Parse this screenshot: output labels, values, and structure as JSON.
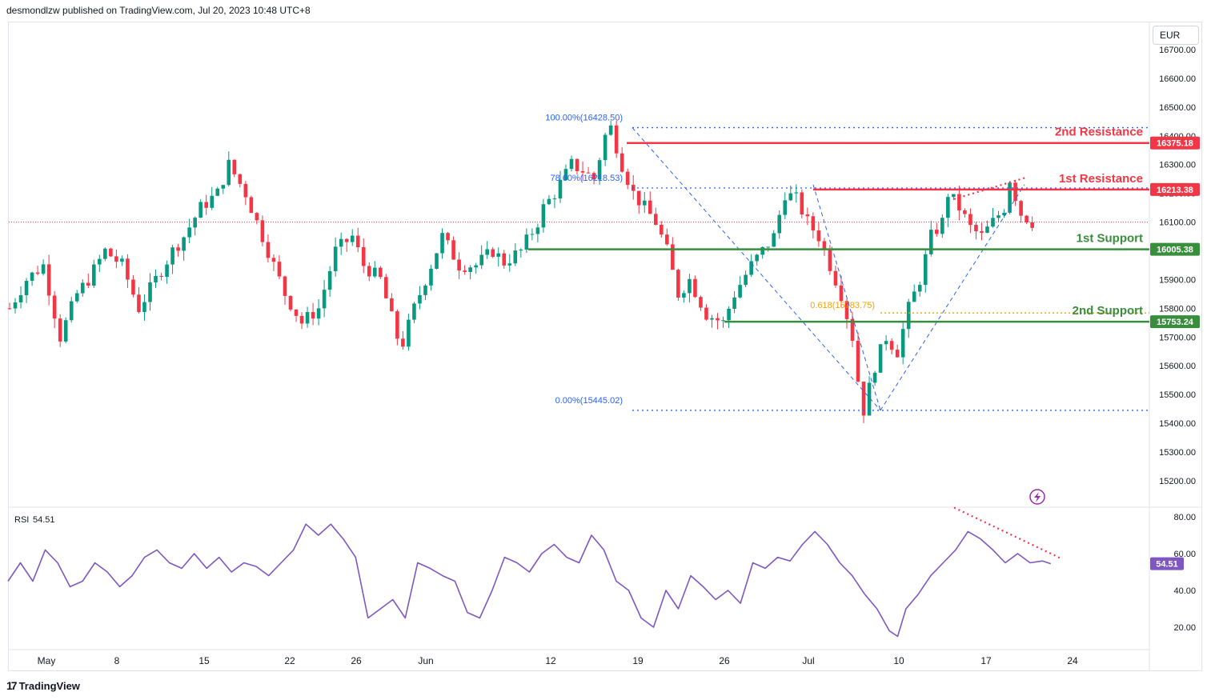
{
  "header": {
    "publisher": "desmondlzw published on TradingView.com, Jul 20, 2023 10:48 UTC+8"
  },
  "currency": "EUR",
  "brand": "TradingView",
  "chart_data": {
    "type": "candlestick",
    "y_axis": {
      "ticks": [
        "16700.00",
        "16600.00",
        "16500.00",
        "16400.00",
        "16300.00",
        "16200.00",
        "16100.00",
        "16000.00",
        "15900.00",
        "15800.00",
        "15700.00",
        "15600.00",
        "15500.00",
        "15400.00",
        "15300.00",
        "15200.00"
      ],
      "range": [
        15150,
        16760
      ]
    },
    "x_axis": {
      "ticks": [
        "May",
        "8",
        "15",
        "22",
        "26",
        "Jun",
        "12",
        "19",
        "26",
        "Jul",
        "10",
        "17",
        "24"
      ]
    },
    "levels": [
      {
        "label": "2nd Resistance",
        "value": "16375.18",
        "color": "#f23645"
      },
      {
        "label": "1st Resistance",
        "value": "16213.38",
        "color": "#f23645"
      },
      {
        "label": "1st Support",
        "value": "16005.38",
        "color": "#388e3c"
      },
      {
        "label": "2nd Support",
        "value": "15753.24",
        "color": "#388e3c"
      }
    ],
    "fibonacci": [
      {
        "label": "100.00%(16428.50)",
        "value": 16428.5
      },
      {
        "label": "78.60%(16218.53)",
        "value": 16218.53
      },
      {
        "label": "0.00%(15445.02)",
        "value": 15445.02
      }
    ],
    "retracement": {
      "label": "0.618(15783.75)",
      "value": 15783.75,
      "color": "#f0a30a"
    },
    "last_price": 16100,
    "price_path": [
      [
        0,
        15800
      ],
      [
        3,
        15900
      ],
      [
        6,
        15950
      ],
      [
        9,
        15700
      ],
      [
        12,
        15850
      ],
      [
        14,
        15900
      ],
      [
        17,
        16000
      ],
      [
        20,
        15950
      ],
      [
        23,
        15800
      ],
      [
        26,
        15900
      ],
      [
        29,
        16000
      ],
      [
        31,
        16050
      ],
      [
        34,
        16150
      ],
      [
        37,
        16200
      ],
      [
        39,
        16300
      ],
      [
        42,
        16200
      ],
      [
        44,
        16100
      ],
      [
        46,
        16000
      ],
      [
        49,
        15850
      ],
      [
        52,
        15750
      ],
      [
        55,
        15800
      ],
      [
        58,
        16000
      ],
      [
        61,
        16050
      ],
      [
        63,
        15950
      ],
      [
        66,
        15900
      ],
      [
        69,
        15700
      ],
      [
        70,
        15680
      ],
      [
        72,
        15800
      ],
      [
        75,
        15950
      ],
      [
        77,
        16050
      ],
      [
        80,
        15950
      ],
      [
        83,
        15950
      ],
      [
        86,
        16000
      ],
      [
        88,
        15960
      ],
      [
        91,
        16000
      ],
      [
        94,
        16100
      ],
      [
        95,
        16150
      ],
      [
        97,
        16200
      ],
      [
        100,
        16300
      ],
      [
        102,
        16280
      ],
      [
        104,
        16250
      ],
      [
        106,
        16400
      ],
      [
        107,
        16428
      ],
      [
        109,
        16300
      ],
      [
        111,
        16200
      ],
      [
        113,
        16150
      ],
      [
        115,
        16100
      ],
      [
        117,
        16000
      ],
      [
        119,
        15850
      ],
      [
        121,
        15900
      ],
      [
        124,
        15780
      ],
      [
        127,
        15750
      ],
      [
        129,
        15850
      ],
      [
        132,
        15950
      ],
      [
        134,
        16000
      ],
      [
        136,
        16050
      ],
      [
        138,
        16200
      ],
      [
        140,
        16180
      ],
      [
        142,
        16100
      ],
      [
        144,
        16050
      ],
      [
        146,
        15950
      ],
      [
        148,
        15850
      ],
      [
        150,
        15700
      ],
      [
        151,
        15550
      ],
      [
        152,
        15445
      ],
      [
        154,
        15600
      ],
      [
        156,
        15700
      ],
      [
        158,
        15650
      ],
      [
        160,
        15800
      ],
      [
        162,
        15900
      ],
      [
        164,
        16050
      ],
      [
        166,
        16100
      ],
      [
        167,
        16200
      ],
      [
        169,
        16150
      ],
      [
        171,
        16080
      ],
      [
        173,
        16050
      ],
      [
        175,
        16100
      ],
      [
        177,
        16150
      ],
      [
        178,
        16250
      ],
      [
        180,
        16130
      ],
      [
        182,
        16100
      ]
    ],
    "indicator": {
      "name": "RSI",
      "value": "54.51",
      "y_ticks": [
        "80.00",
        "60.00",
        "40.00",
        "20.00"
      ],
      "range": [
        10,
        85
      ],
      "path": [
        [
          0,
          45
        ],
        [
          3,
          55
        ],
        [
          6,
          45
        ],
        [
          9,
          62
        ],
        [
          12,
          55
        ],
        [
          15,
          42
        ],
        [
          18,
          45
        ],
        [
          21,
          55
        ],
        [
          24,
          50
        ],
        [
          27,
          42
        ],
        [
          30,
          48
        ],
        [
          33,
          58
        ],
        [
          36,
          62
        ],
        [
          39,
          55
        ],
        [
          42,
          52
        ],
        [
          45,
          60
        ],
        [
          48,
          52
        ],
        [
          51,
          58
        ],
        [
          54,
          50
        ],
        [
          57,
          55
        ],
        [
          60,
          53
        ],
        [
          63,
          48
        ],
        [
          66,
          55
        ],
        [
          69,
          62
        ],
        [
          72,
          76
        ],
        [
          75,
          70
        ],
        [
          78,
          76
        ],
        [
          81,
          68
        ],
        [
          84,
          58
        ],
        [
          87,
          25
        ],
        [
          90,
          30
        ],
        [
          93,
          35
        ],
        [
          96,
          25
        ],
        [
          99,
          55
        ],
        [
          102,
          52
        ],
        [
          105,
          48
        ],
        [
          108,
          45
        ],
        [
          111,
          28
        ],
        [
          114,
          25
        ],
        [
          117,
          40
        ],
        [
          120,
          58
        ],
        [
          123,
          55
        ],
        [
          126,
          50
        ],
        [
          129,
          60
        ],
        [
          132,
          65
        ],
        [
          135,
          58
        ],
        [
          138,
          55
        ],
        [
          141,
          70
        ],
        [
          144,
          62
        ],
        [
          147,
          45
        ],
        [
          150,
          40
        ],
        [
          153,
          25
        ],
        [
          156,
          20
        ],
        [
          159,
          40
        ],
        [
          162,
          30
        ],
        [
          165,
          48
        ],
        [
          168,
          42
        ],
        [
          171,
          35
        ],
        [
          174,
          40
        ],
        [
          177,
          33
        ],
        [
          180,
          55
        ],
        [
          183,
          52
        ],
        [
          186,
          58
        ],
        [
          189,
          56
        ],
        [
          192,
          65
        ],
        [
          195,
          72
        ],
        [
          198,
          65
        ],
        [
          201,
          55
        ],
        [
          204,
          48
        ],
        [
          207,
          38
        ],
        [
          210,
          30
        ],
        [
          213,
          18
        ],
        [
          215,
          15
        ],
        [
          217,
          30
        ],
        [
          220,
          38
        ],
        [
          223,
          48
        ],
        [
          226,
          55
        ],
        [
          229,
          62
        ],
        [
          232,
          72
        ],
        [
          235,
          68
        ],
        [
          238,
          62
        ],
        [
          241,
          55
        ],
        [
          244,
          60
        ],
        [
          247,
          55
        ],
        [
          250,
          56
        ],
        [
          252,
          54.5
        ]
      ]
    }
  }
}
